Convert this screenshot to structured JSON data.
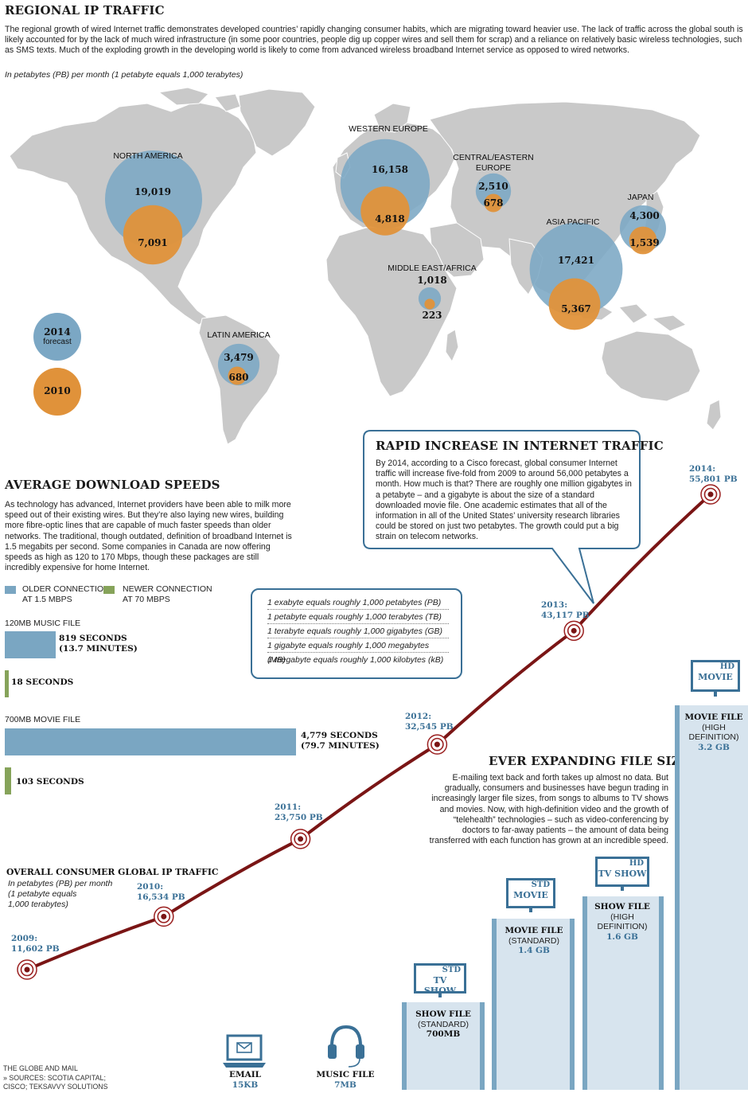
{
  "regional": {
    "title": "REGIONAL IP TRAFFIC",
    "intro": "The regional growth of wired Internet traffic demonstrates developed countries’ rapidly changing consumer habits, which are migrating toward heavier use. The lack of traffic across the global south is likely accounted for by the lack of much wired infrastructure (in some poor countries, people dig up copper wires and sell them for scrap) and a reliance on relatively basic wireless technologies, such as SMS texts. Much of the exploding growth in the developing world is likely to come from advanced wireless broadband Internet service as opposed to wired networks.",
    "units_note": "In petabytes (PB) per month  (1 petabyte equals 1,000 terabytes)",
    "legend": {
      "y2014": "2014",
      "forecast": "forecast",
      "y2010": "2010"
    },
    "colors": {
      "forecast_2014": "#7ba7c4",
      "actual_2010": "#e0923a",
      "map": "#c9c9c9"
    }
  },
  "chart_data": [
    {
      "type": "bubble-map",
      "title": "REGIONAL IP TRAFFIC",
      "unit": "In petabytes (PB) per month",
      "series": [
        {
          "name": "2014 forecast",
          "color": "#7ba7c4"
        },
        {
          "name": "2010",
          "color": "#e0923a"
        }
      ],
      "regions": [
        {
          "name": "NORTH AMERICA",
          "y2014": 19019,
          "y2010": 7091,
          "v2014": "19,019",
          "v2010": "7,091"
        },
        {
          "name": "WESTERN EUROPE",
          "y2014": 16158,
          "y2010": 4818,
          "v2014": "16,158",
          "v2010": "4,818"
        },
        {
          "name": "CENTRAL/EASTERN EUROPE",
          "y2014": 2510,
          "y2010": 678,
          "v2014": "2,510",
          "v2010": "678"
        },
        {
          "name": "JAPAN",
          "y2014": 4300,
          "y2010": 1539,
          "v2014": "4,300",
          "v2010": "1,539"
        },
        {
          "name": "ASIA PACIFIC",
          "y2014": 17421,
          "y2010": 5367,
          "v2014": "17,421",
          "v2010": "5,367"
        },
        {
          "name": "MIDDLE EAST/AFRICA",
          "y2014": 1018,
          "y2010": 223,
          "v2014": "1,018",
          "v2010": "223"
        },
        {
          "name": "LATIN AMERICA",
          "y2014": 3479,
          "y2010": 680,
          "v2014": "3,479",
          "v2010": "680"
        }
      ]
    },
    {
      "type": "line",
      "title": "OVERALL CONSUMER GLOBAL IP TRAFFIC",
      "subtitle": "In petabytes (PB) per month (1 petabyte equals 1,000 terabytes)",
      "x": [
        2009,
        2010,
        2011,
        2012,
        2013,
        2014
      ],
      "values": [
        11602,
        16534,
        23750,
        32545,
        43117,
        55801
      ],
      "labels": [
        "2009:",
        "2010:",
        "2011:",
        "2012:",
        "2013:",
        "2014:"
      ],
      "value_labels": [
        "11,602 PB",
        "16,534 PB",
        "23,750 PB",
        "32,545 PB",
        "43,117 PB",
        "55,801 PB"
      ],
      "color": "#7a1515"
    },
    {
      "type": "bar",
      "title": "AVERAGE DOWNLOAD SPEEDS",
      "series": [
        {
          "name": "OLDER CONNECTION AT 1.5 MBPS",
          "color": "#7aa6c2"
        },
        {
          "name": "NEWER CONNECTION AT 70 MBPS",
          "color": "#86a35a"
        }
      ],
      "categories": [
        "120MB MUSIC FILE",
        "700MB MOVIE FILE"
      ],
      "values_older_seconds": [
        819,
        4779
      ],
      "values_newer_seconds": [
        18,
        103
      ]
    },
    {
      "type": "bar",
      "title": "EVER EXPANDING FILE SIZE",
      "categories": [
        "EMAIL",
        "MUSIC FILE",
        "SHOW FILE (STANDARD)",
        "MOVIE FILE (STANDARD)",
        "SHOW FILE (HIGH DEFINITION)",
        "MOVIE FILE (HIGH DEFINITION)"
      ],
      "values_mb": [
        0.015,
        7,
        700,
        1400,
        1600,
        3200
      ],
      "value_labels": [
        "15KB",
        "7MB",
        "700MB",
        "1.4 GB",
        "1.6 GB",
        "3.2 GB"
      ],
      "color": "#7aa6c2"
    }
  ],
  "speeds": {
    "title": "AVERAGE DOWNLOAD SPEEDS",
    "body": "As technology has advanced, Internet providers have been able to milk more speed out of their existing wires. But they’re also laying new wires, building more fibre-optic lines that are capable of much faster speeds than older networks. The traditional, though outdated, definition of broadband Internet is 1.5 megabits per second. Some companies in Canada are now offering speeds as high as 120 to 170 Mbps, though these packages are still incredibly expensive for home Internet.",
    "legend_old_1": "OLDER CONNECTION",
    "legend_old_2": "AT 1.5 MBPS",
    "legend_new_1": "NEWER CONNECTION",
    "legend_new_2": "AT 70 MBPS",
    "music_label": "120MB MUSIC FILE",
    "music_old_1": "819 SECONDS",
    "music_old_2": "(13.7 MINUTES)",
    "music_new": "18 SECONDS",
    "movie_label": "700MB MOVIE FILE",
    "movie_old_1": "4,779 SECONDS",
    "movie_old_2": "(79.7 MINUTES)",
    "movie_new": "103 SECONDS"
  },
  "units": [
    "1 exabyte equals roughly 1,000 petabytes (PB)",
    "1 petabyte equals roughly 1,000 terabytes (TB)",
    "1 terabyte equals roughly 1,000 gigabytes (GB)",
    "1 gigabyte equals roughly 1,000 megabytes (MB)",
    "1 megabyte equals roughly 1,000 kilobytes (kB)"
  ],
  "rapid": {
    "title": "RAPID INCREASE IN INTERNET TRAFFIC",
    "body": "By 2014, according to a Cisco forecast, global consumer Internet traffic will increase five-fold from 2009 to around 56,000 petabytes a month. How much is that? There are roughly one million gigabytes in a petabyte – and a gigabyte is about the size of a standard downloaded movie file. One academic estimates that all of the information in all of the United States’ university research libraries could be stored on just two petabytes. The growth could put a big strain on telecom networks."
  },
  "overall": {
    "title": "OVERALL CONSUMER GLOBAL IP TRAFFIC",
    "sub1": "In petabytes (PB) per month",
    "sub2": "(1 petabyte equals",
    "sub3": "1,000 terabytes)"
  },
  "filesize": {
    "title": "EVER EXPANDING FILE SIZE",
    "body": "E-mailing text back and forth takes up almost no data. But gradually, consumers and businesses have begun trading in increasingly larger file sizes, from songs to albums to TV shows and movies. Now, with high-definition video and the growth of “telehealth” technologies – such as video-conferencing by doctors to far-away patients – the amount of data being transferred with each function has grown at an incredible speed.",
    "email_1": "EMAIL",
    "email_2": "15KB",
    "music_1": "MUSIC FILE",
    "music_2": "7MB",
    "show_std_1": "SHOW FILE",
    "show_std_2": "(STANDARD)",
    "show_std_3": "700MB",
    "movie_std_1": "MOVIE FILE",
    "movie_std_2": "(STANDARD)",
    "movie_std_3": "1.4 GB",
    "show_hd_1": "SHOW FILE",
    "show_hd_2": "(HIGH",
    "show_hd_3": "DEFINITION)",
    "show_hd_4": "1.6 GB",
    "movie_hd_1": "MOVIE FILE",
    "movie_hd_2": "(HIGH",
    "movie_hd_3": "DEFINITION)",
    "movie_hd_4": "3.2 GB",
    "scr_std": "STD",
    "scr_tvshow": "TV SHOW",
    "scr_movie": "MOVIE",
    "scr_hd": "HD"
  },
  "footer": {
    "line1": "THE GLOBE AND MAIL",
    "line2": "» SOURCES: SCOTIA CAPITAL;",
    "line3": "CISCO; TEKSAVVY SOLUTIONS"
  }
}
